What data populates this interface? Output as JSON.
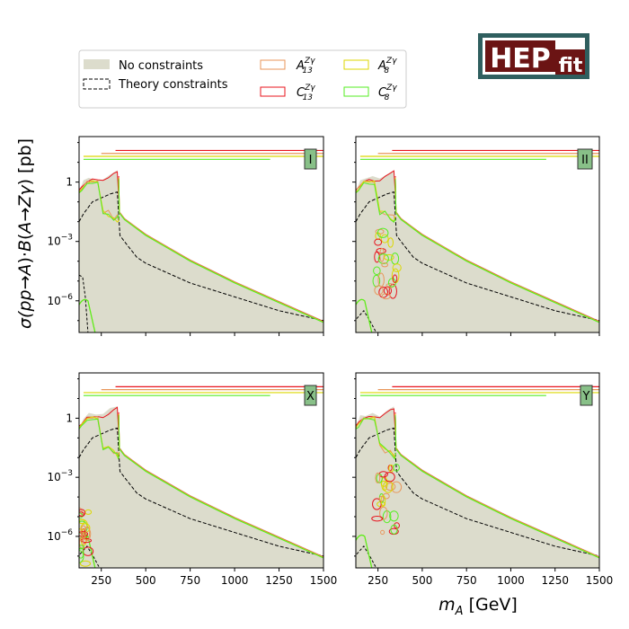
{
  "logo": {
    "text_main": "HEP",
    "text_sub": "fit",
    "bg": "#6b1414",
    "frame": "#2f5f5f"
  },
  "legend": {
    "items": [
      {
        "key": "none",
        "label": "No constraints",
        "style": "fill",
        "color": "#dcdccc"
      },
      {
        "key": "theory",
        "label": "Theory constraints",
        "style": "dashed",
        "color": "#000000"
      },
      {
        "key": "A13",
        "label_main": "A",
        "label_sub": "13",
        "label_sup": "Zγ",
        "style": "box",
        "color": "#e8965a"
      },
      {
        "key": "C13",
        "label_main": "C",
        "label_sub": "13",
        "label_sup": "Zγ",
        "style": "box",
        "color": "#e8141e"
      },
      {
        "key": "A8",
        "label_main": "A",
        "label_sub": "8",
        "label_sup": "Zγ",
        "style": "box",
        "color": "#dcd700"
      },
      {
        "key": "C8",
        "label_main": "C",
        "label_sub": "8",
        "label_sup": "Zγ",
        "style": "box",
        "color": "#55ee22"
      }
    ]
  },
  "axes_labels": {
    "ylabel_parts": [
      "σ(",
      "pp",
      "→",
      "A",
      ")·",
      "B",
      "(",
      "A",
      "→",
      "Zγ",
      ") [pb]"
    ],
    "xlabel_main": "m",
    "xlabel_sub": "A",
    "xlabel_unit": " [GeV]"
  },
  "chart_data": {
    "type": "area",
    "xlim": [
      125,
      1500
    ],
    "ylim_log10": [
      -7.6,
      2.3
    ],
    "xticks": [
      250,
      500,
      750,
      1000,
      1250,
      1500
    ],
    "xtick_labels": [
      "250",
      "500",
      "750",
      "1000",
      "1250",
      "1500"
    ],
    "ytick_exp": [
      0,
      -3,
      -6
    ],
    "ytick_labels": {
      "base": "10",
      "exp": [
        "",
        "−3",
        "−6"
      ],
      "one": "1"
    },
    "colors": {
      "band": "#dcdccc",
      "A13": "#e8965a",
      "C13": "#e8141e",
      "A8": "#dcd700",
      "C8": "#55ee22",
      "theory": "#000000",
      "badge": "#88c088"
    },
    "band_upper": {
      "x": [
        125,
        150,
        180,
        220,
        260,
        300,
        340,
        355,
        380,
        500,
        750,
        1000,
        1250,
        1500
      ],
      "log10y": [
        -0.5,
        0.1,
        0.2,
        0.2,
        0.2,
        0.4,
        0.6,
        -1.5,
        -1.8,
        -2.6,
        -3.9,
        -5.0,
        -6.0,
        -7.0
      ]
    },
    "band_lower_log10": -8.0,
    "theory_upper": {
      "x": [
        125,
        150,
        200,
        250,
        300,
        340,
        355,
        380,
        450,
        500,
        750,
        1000,
        1250,
        1500
      ],
      "log10y": [
        -2.0,
        -1.6,
        -1.0,
        -0.8,
        -0.6,
        -0.5,
        -2.7,
        -3.0,
        -3.8,
        -4.1,
        -5.1,
        -5.8,
        -6.5,
        -7.0
      ]
    },
    "top_lines": [
      {
        "color": "#e8141e",
        "x": [
          330,
          1500
        ],
        "log10y": 1.6
      },
      {
        "color": "#e8965a",
        "x": [
          250,
          1500
        ],
        "log10y": 1.45
      },
      {
        "color": "#dcd700",
        "x": [
          150,
          1500
        ],
        "log10y": 1.3
      },
      {
        "color": "#55ee22",
        "x": [
          150,
          1200
        ],
        "log10y": 1.15
      }
    ],
    "panels": [
      {
        "id": "I",
        "label": "I",
        "low_region": "none"
      },
      {
        "id": "II",
        "label": "II",
        "low_region": "mid"
      },
      {
        "id": "X",
        "label": "X",
        "low_region": "deep"
      },
      {
        "id": "Y",
        "label": "Y",
        "low_region": "mid"
      }
    ]
  }
}
